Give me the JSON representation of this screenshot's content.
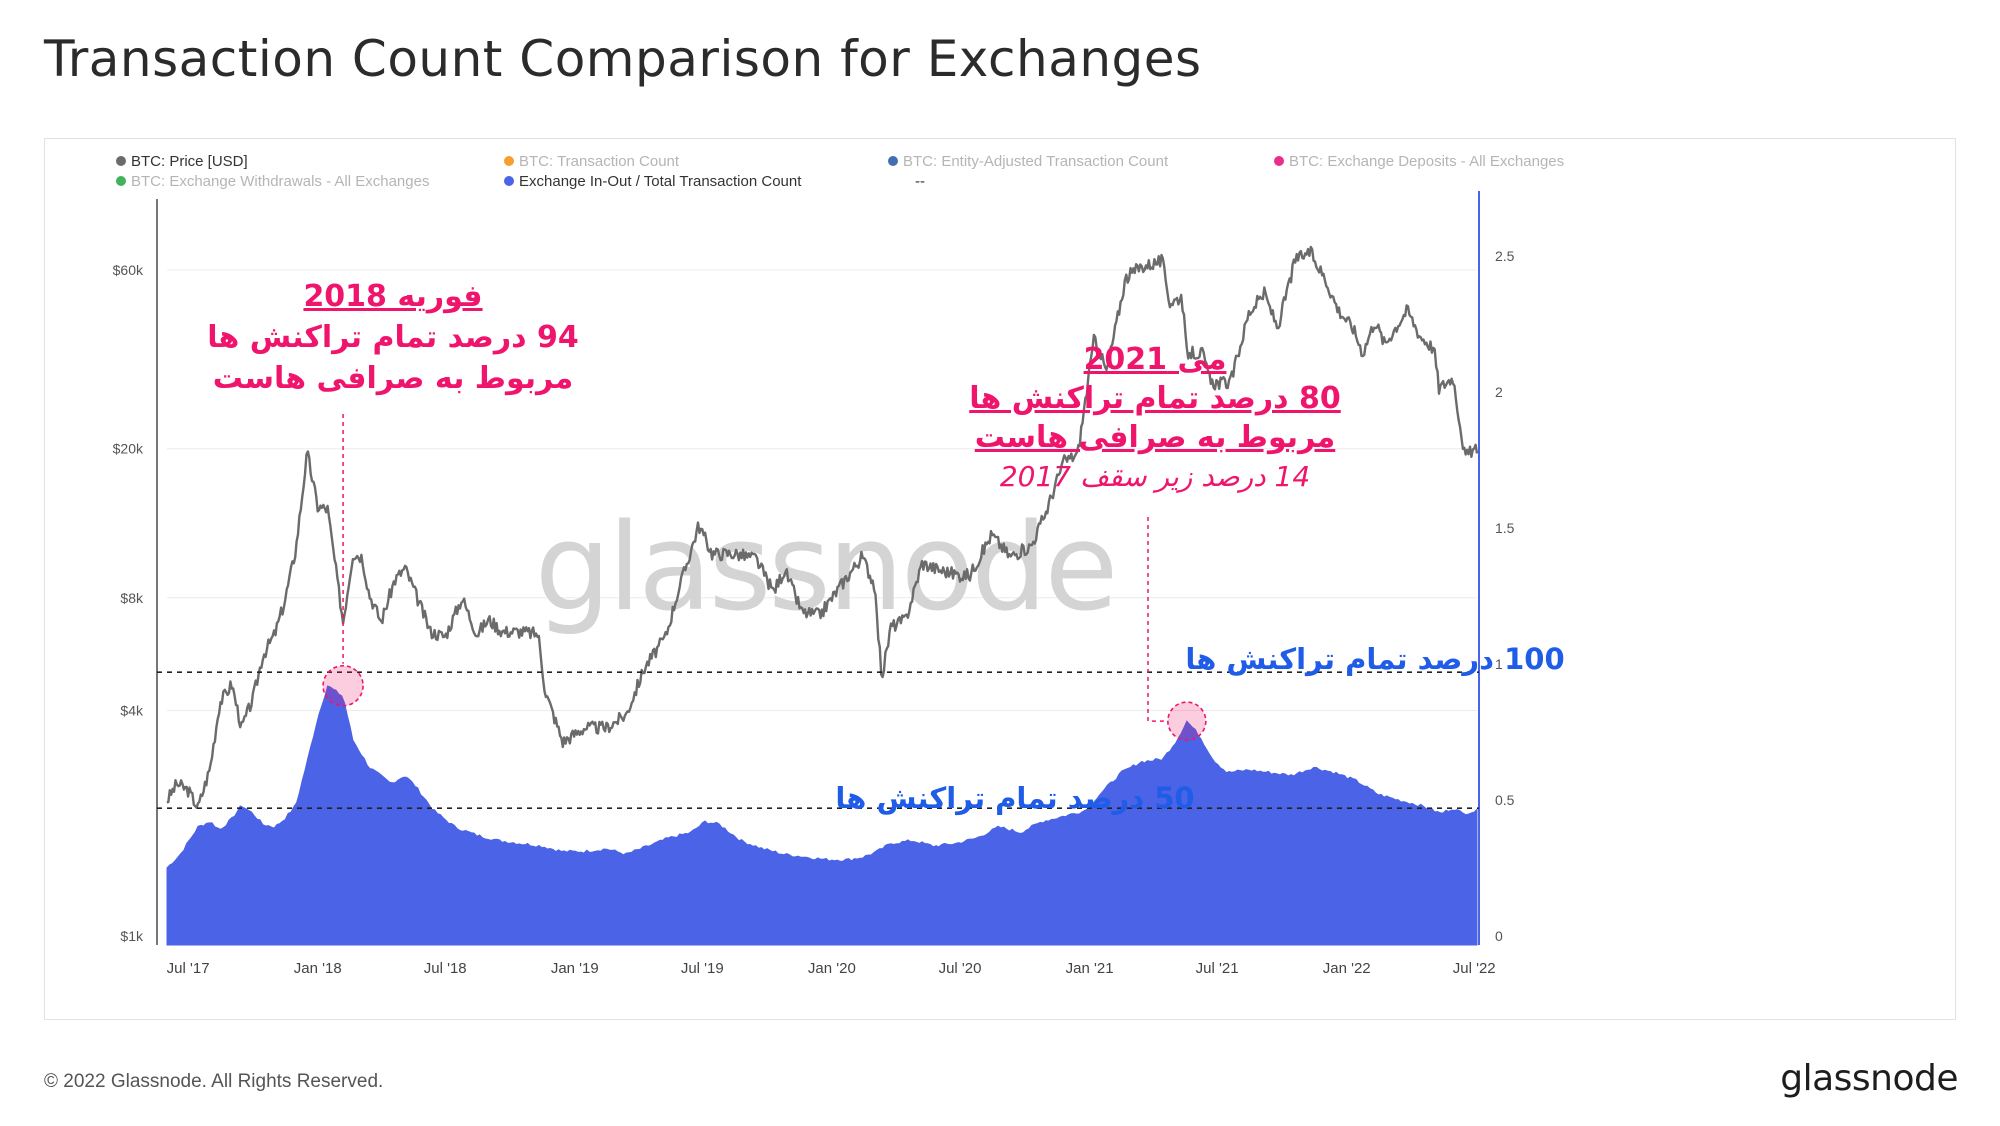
{
  "title": "Transaction Count Comparison for Exchanges",
  "footer": {
    "copyright": "© 2022 Glassnode. All Rights Reserved.",
    "logo": "glassnode"
  },
  "watermark": "glassnode",
  "legend": [
    {
      "label": "BTC: Price [USD]",
      "color": "#6b6b6b",
      "active": true
    },
    {
      "label": "BTC: Transaction Count",
      "color": "#f7931a",
      "active": false
    },
    {
      "label": "BTC: Entity-Adjusted Transaction Count",
      "color": "#2c5fa8",
      "active": false
    },
    {
      "label": "BTC: Exchange Deposits - All Exchanges",
      "color": "#e8177d",
      "active": false
    },
    {
      "label": "BTC: Exchange Withdrawals - All Exchanges",
      "color": "#2eaa4a",
      "active": false
    },
    {
      "label": "Exchange In-Out / Total Transaction Count",
      "color": "#4b63e6",
      "active": true
    },
    {
      "label": "--",
      "color": "",
      "active": true
    }
  ],
  "annotations": {
    "feb2018": {
      "line1": "فوریه 2018",
      "line2": "94 درصد تمام تراکنش ها",
      "line3": "مربوط به صرافی هاست",
      "color": "#f0156c"
    },
    "may2021": {
      "line1": "می 2021",
      "line2": "80 درصد تمام تراکنش ها",
      "line3": "مربوط به صرافی هاست",
      "line4": "14 درصد زیر سقف 2017",
      "color": "#f0156c"
    },
    "ref100": {
      "label": "100 درصد تمام تراکنش ها",
      "color": "#1f5ce8"
    },
    "ref50": {
      "label": "50 درصد تمام تراکنش ها",
      "color": "#1f5ce8"
    }
  },
  "chart_data": {
    "type": "line",
    "x_axis": {
      "ticks": [
        "Jul '17",
        "Jan '18",
        "Jul '18",
        "Jan '19",
        "Jul '19",
        "Jan '20",
        "Jul '20",
        "Jan '21",
        "Jul '21",
        "Jan '22",
        "Jul '22"
      ]
    },
    "y_left": {
      "scale": "log",
      "ticks": [
        "$1k",
        "$4k",
        "$8k",
        "$20k",
        "$60k"
      ],
      "tick_values": [
        1000,
        4000,
        8000,
        20000,
        60000
      ]
    },
    "y_right": {
      "scale": "linear",
      "ticks": [
        "0",
        "0.5",
        "1",
        "1.5",
        "2",
        "2.5"
      ],
      "tick_values": [
        0,
        0.5,
        1,
        1.5,
        2,
        2.5
      ],
      "ylim": [
        0,
        2.5
      ]
    },
    "reference_lines": [
      {
        "axis": "right",
        "value": 0.97
      },
      {
        "axis": "right",
        "value": 0.47
      }
    ],
    "series": [
      {
        "name": "BTC: Price [USD]",
        "axis": "left",
        "color": "#6b6b6b",
        "x": [
          "2017-06-01",
          "2017-06-15",
          "2017-07-01",
          "2017-07-15",
          "2017-08-01",
          "2017-08-15",
          "2017-09-01",
          "2017-09-15",
          "2017-10-01",
          "2017-10-15",
          "2017-11-01",
          "2017-11-15",
          "2017-12-01",
          "2017-12-17",
          "2018-01-01",
          "2018-01-15",
          "2018-02-06",
          "2018-02-20",
          "2018-03-05",
          "2018-03-15",
          "2018-04-01",
          "2018-04-20",
          "2018-05-05",
          "2018-05-20",
          "2018-06-10",
          "2018-07-01",
          "2018-07-25",
          "2018-08-15",
          "2018-09-01",
          "2018-09-20",
          "2018-10-15",
          "2018-11-10",
          "2018-11-20",
          "2018-12-15",
          "2019-01-15",
          "2019-02-15",
          "2019-03-15",
          "2019-04-10",
          "2019-05-10",
          "2019-05-25",
          "2019-06-26",
          "2019-07-15",
          "2019-08-15",
          "2019-09-15",
          "2019-10-10",
          "2019-10-26",
          "2019-11-20",
          "2019-12-15",
          "2020-01-15",
          "2020-02-13",
          "2020-03-01",
          "2020-03-12",
          "2020-03-25",
          "2020-04-15",
          "2020-05-08",
          "2020-06-01",
          "2020-07-01",
          "2020-07-15",
          "2020-08-15",
          "2020-09-10",
          "2020-10-10",
          "2020-11-01",
          "2020-11-25",
          "2020-12-15",
          "2021-01-08",
          "2021-01-25",
          "2021-02-21",
          "2021-03-13",
          "2021-04-14",
          "2021-04-25",
          "2021-05-12",
          "2021-05-19",
          "2021-06-10",
          "2021-06-22",
          "2021-07-20",
          "2021-08-15",
          "2021-09-06",
          "2021-09-25",
          "2021-10-20",
          "2021-11-10",
          "2021-12-01",
          "2021-12-20",
          "2022-01-10",
          "2022-01-24",
          "2022-02-10",
          "2022-02-24",
          "2022-03-28",
          "2022-04-15",
          "2022-05-05",
          "2022-05-12",
          "2022-06-01",
          "2022-06-18",
          "2022-07-01",
          "2022-07-05"
        ],
        "values": [
          2300,
          2550,
          2450,
          2200,
          2800,
          4200,
          4700,
          3600,
          4300,
          5600,
          6400,
          7800,
          10800,
          19500,
          14000,
          13800,
          6900,
          10500,
          10300,
          8200,
          6900,
          8900,
          9600,
          8200,
          6500,
          6300,
          8000,
          6400,
          7000,
          6500,
          6500,
          6400,
          4500,
          3300,
          3600,
          3600,
          3900,
          5200,
          6300,
          8000,
          12500,
          10500,
          10500,
          10200,
          8300,
          9500,
          7300,
          7200,
          8700,
          10300,
          8700,
          4900,
          6700,
          7000,
          9900,
          9500,
          9200,
          9200,
          11800,
          10300,
          11000,
          13700,
          18500,
          19300,
          40000,
          32000,
          57000,
          61000,
          63500,
          49000,
          51000,
          36000,
          36000,
          30000,
          30000,
          46000,
          52000,
          42000,
          64000,
          67000,
          57000,
          47000,
          42000,
          36000,
          44000,
          38000,
          47000,
          40000,
          37000,
          29000,
          31000,
          19000,
          20000,
          19500
        ]
      },
      {
        "name": "Exchange In-Out / Total Transaction Count",
        "axis": "right",
        "color": "#4b63e6",
        "x": [
          "2017-06-01",
          "2017-06-20",
          "2017-07-15",
          "2017-08-01",
          "2017-08-15",
          "2017-09-01",
          "2017-09-15",
          "2017-10-01",
          "2017-10-15",
          "2017-11-01",
          "2017-11-15",
          "2017-12-01",
          "2017-12-15",
          "2018-01-01",
          "2018-01-15",
          "2018-02-06",
          "2018-02-20",
          "2018-03-15",
          "2018-04-15",
          "2018-05-05",
          "2018-05-20",
          "2018-06-15",
          "2018-07-15",
          "2018-08-15",
          "2018-09-15",
          "2018-10-15",
          "2018-11-15",
          "2018-12-15",
          "2019-01-15",
          "2019-02-15",
          "2019-03-15",
          "2019-04-15",
          "2019-05-15",
          "2019-06-15",
          "2019-07-05",
          "2019-07-25",
          "2019-08-25",
          "2019-09-25",
          "2019-10-25",
          "2019-11-25",
          "2019-12-25",
          "2020-01-25",
          "2020-02-15",
          "2020-03-05",
          "2020-03-25",
          "2020-04-25",
          "2020-05-25",
          "2020-06-25",
          "2020-07-25",
          "2020-08-25",
          "2020-09-25",
          "2020-10-25",
          "2020-11-25",
          "2020-12-25",
          "2021-01-15",
          "2021-02-15",
          "2021-03-15",
          "2021-04-15",
          "2021-05-05",
          "2021-05-19",
          "2021-06-05",
          "2021-06-25",
          "2021-07-15",
          "2021-08-15",
          "2021-09-15",
          "2021-10-15",
          "2021-11-15",
          "2021-12-15",
          "2022-01-15",
          "2022-02-15",
          "2022-03-15",
          "2022-04-15",
          "2022-05-15",
          "2022-06-01",
          "2022-06-15",
          "2022-07-05"
        ],
        "values": [
          0.25,
          0.3,
          0.4,
          0.42,
          0.39,
          0.43,
          0.48,
          0.45,
          0.41,
          0.4,
          0.43,
          0.48,
          0.62,
          0.8,
          0.92,
          0.88,
          0.72,
          0.62,
          0.56,
          0.59,
          0.55,
          0.46,
          0.4,
          0.37,
          0.35,
          0.34,
          0.33,
          0.31,
          0.31,
          0.32,
          0.3,
          0.33,
          0.36,
          0.38,
          0.42,
          0.41,
          0.35,
          0.32,
          0.3,
          0.29,
          0.28,
          0.28,
          0.29,
          0.31,
          0.34,
          0.35,
          0.33,
          0.34,
          0.36,
          0.4,
          0.38,
          0.42,
          0.44,
          0.46,
          0.52,
          0.6,
          0.64,
          0.65,
          0.72,
          0.79,
          0.74,
          0.65,
          0.6,
          0.61,
          0.6,
          0.59,
          0.62,
          0.6,
          0.57,
          0.52,
          0.5,
          0.48,
          0.45,
          0.47,
          0.45,
          0.46
        ]
      }
    ]
  }
}
